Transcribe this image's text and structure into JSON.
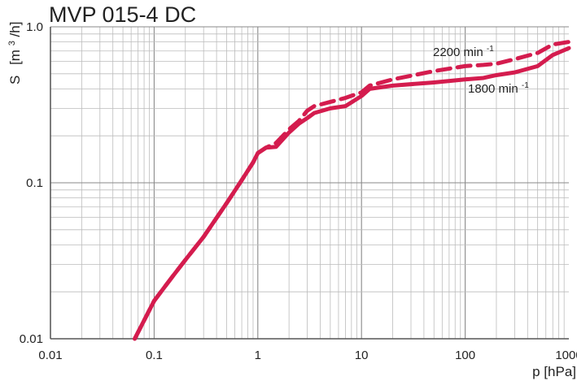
{
  "chart_data": {
    "type": "line",
    "title": "MVP 015-4 DC",
    "xlabel": "p [hPa]",
    "ylabel": {
      "main": "S",
      "unit_prefix": "[m",
      "unit_exp": "3",
      "unit_suffix": "/h]"
    },
    "x_scale": "log",
    "y_scale": "log",
    "xlim": [
      0.01,
      1000
    ],
    "ylim": [
      0.01,
      1.0
    ],
    "x_ticks": [
      {
        "value": 0.01,
        "label": "0.01"
      },
      {
        "value": 0.1,
        "label": "0.1"
      },
      {
        "value": 1,
        "label": "1"
      },
      {
        "value": 10,
        "label": "10"
      },
      {
        "value": 100,
        "label": "100"
      },
      {
        "value": 1000,
        "label": "1000"
      }
    ],
    "y_ticks": [
      {
        "value": 0.01,
        "label": "0.01"
      },
      {
        "value": 0.1,
        "label": "0.1"
      },
      {
        "value": 1.0,
        "label": "1.0"
      }
    ],
    "grid": true,
    "series": [
      {
        "name": "2200 min",
        "name_sup": "-1",
        "style": "dashed",
        "color": "#d41c4e",
        "x": [
          0.065,
          0.1,
          0.15,
          0.2,
          0.3,
          0.5,
          0.7,
          0.9,
          1.0,
          1.2,
          1.5,
          2.0,
          2.5,
          3.0,
          3.5,
          5.0,
          7.0,
          10,
          12,
          20,
          50,
          100,
          150,
          200,
          300,
          500,
          700,
          1000
        ],
        "y": [
          0.01,
          0.0175,
          0.025,
          0.032,
          0.045,
          0.074,
          0.104,
          0.135,
          0.155,
          0.168,
          0.18,
          0.22,
          0.25,
          0.29,
          0.31,
          0.33,
          0.35,
          0.38,
          0.42,
          0.46,
          0.52,
          0.56,
          0.57,
          0.58,
          0.62,
          0.68,
          0.77,
          0.8
        ]
      },
      {
        "name": "1800 min",
        "name_sup": "-1",
        "style": "solid",
        "color": "#d41c4e",
        "x": [
          0.065,
          0.1,
          0.15,
          0.2,
          0.3,
          0.5,
          0.7,
          0.9,
          1.0,
          1.2,
          1.5,
          2.0,
          2.5,
          3.0,
          3.5,
          5.0,
          7.0,
          10,
          12,
          20,
          50,
          100,
          150,
          200,
          300,
          500,
          700,
          1000
        ],
        "y": [
          0.01,
          0.0175,
          0.025,
          0.032,
          0.045,
          0.074,
          0.104,
          0.135,
          0.155,
          0.168,
          0.17,
          0.21,
          0.24,
          0.26,
          0.28,
          0.3,
          0.31,
          0.36,
          0.4,
          0.42,
          0.44,
          0.46,
          0.47,
          0.49,
          0.51,
          0.56,
          0.66,
          0.73
        ]
      }
    ]
  }
}
